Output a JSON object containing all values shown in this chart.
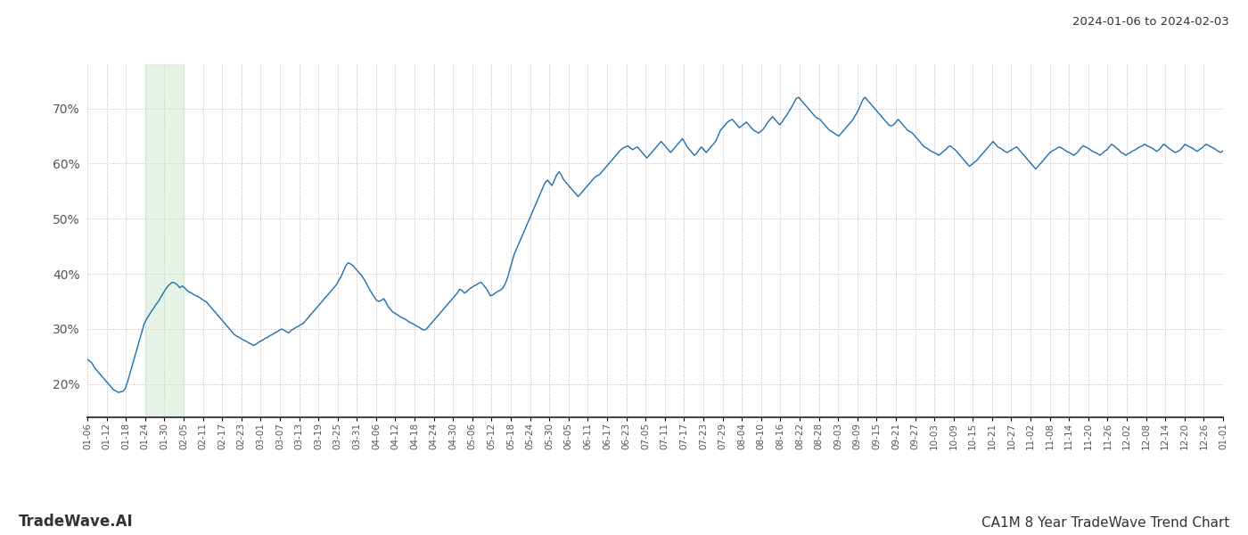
{
  "title_top_right": "2024-01-06 to 2024-02-03",
  "title_bottom_left": "TradeWave.AI",
  "title_bottom_right": "CA1M 8 Year TradeWave Trend Chart",
  "ylim": [
    14,
    78
  ],
  "yticks": [
    20,
    30,
    40,
    50,
    60,
    70
  ],
  "bg_color": "#ffffff",
  "line_color": "#1c6fad",
  "shade_color": "#c8e6c9",
  "shade_alpha": 0.45,
  "grid_color": "#bbbbbb",
  "grid_style": ":",
  "x_labels": [
    "01-06",
    "01-12",
    "01-18",
    "01-24",
    "01-30",
    "02-05",
    "02-11",
    "02-17",
    "02-23",
    "03-01",
    "03-07",
    "03-13",
    "03-19",
    "03-25",
    "03-31",
    "04-06",
    "04-12",
    "04-18",
    "04-24",
    "04-30",
    "05-06",
    "05-12",
    "05-18",
    "05-24",
    "05-30",
    "06-05",
    "06-11",
    "06-17",
    "06-23",
    "07-05",
    "07-11",
    "07-17",
    "07-23",
    "07-29",
    "08-04",
    "08-10",
    "08-16",
    "08-22",
    "08-28",
    "09-03",
    "09-09",
    "09-15",
    "09-21",
    "09-27",
    "10-03",
    "10-09",
    "10-15",
    "10-21",
    "10-27",
    "11-02",
    "11-08",
    "11-14",
    "11-20",
    "11-26",
    "12-02",
    "12-08",
    "12-14",
    "12-20",
    "12-26",
    "01-01"
  ],
  "shade_label_start": "01-24",
  "shade_label_end": "02-05",
  "y_values": [
    24.5,
    24.2,
    23.8,
    23.0,
    22.5,
    22.0,
    21.5,
    21.0,
    20.5,
    20.0,
    19.5,
    19.0,
    18.8,
    18.5,
    18.6,
    18.7,
    19.2,
    20.5,
    22.0,
    23.5,
    25.0,
    26.5,
    28.0,
    29.5,
    31.0,
    31.8,
    32.5,
    33.2,
    33.8,
    34.5,
    35.0,
    35.8,
    36.5,
    37.2,
    37.8,
    38.2,
    38.5,
    38.3,
    38.0,
    37.5,
    37.8,
    37.5,
    37.0,
    36.7,
    36.5,
    36.2,
    36.0,
    35.8,
    35.5,
    35.2,
    35.0,
    34.5,
    34.0,
    33.5,
    33.0,
    32.5,
    32.0,
    31.5,
    31.0,
    30.5,
    30.0,
    29.5,
    29.0,
    28.7,
    28.5,
    28.2,
    28.0,
    27.8,
    27.5,
    27.3,
    27.0,
    27.2,
    27.5,
    27.8,
    28.0,
    28.3,
    28.5,
    28.8,
    29.0,
    29.3,
    29.5,
    29.8,
    30.0,
    29.8,
    29.5,
    29.3,
    29.8,
    30.0,
    30.3,
    30.5,
    30.8,
    31.0,
    31.5,
    32.0,
    32.5,
    33.0,
    33.5,
    34.0,
    34.5,
    35.0,
    35.5,
    36.0,
    36.5,
    37.0,
    37.5,
    38.0,
    38.8,
    39.5,
    40.5,
    41.5,
    42.0,
    41.8,
    41.5,
    41.0,
    40.5,
    40.0,
    39.5,
    38.8,
    38.0,
    37.2,
    36.5,
    35.8,
    35.2,
    35.0,
    35.2,
    35.5,
    34.8,
    34.0,
    33.5,
    33.0,
    32.8,
    32.5,
    32.2,
    32.0,
    31.8,
    31.5,
    31.2,
    31.0,
    30.8,
    30.5,
    30.3,
    30.0,
    29.8,
    30.0,
    30.5,
    31.0,
    31.5,
    32.0,
    32.5,
    33.0,
    33.5,
    34.0,
    34.5,
    35.0,
    35.5,
    36.0,
    36.5,
    37.2,
    37.0,
    36.5,
    36.8,
    37.2,
    37.5,
    37.8,
    38.0,
    38.3,
    38.5,
    38.0,
    37.5,
    36.8,
    36.0,
    36.2,
    36.5,
    36.8,
    37.0,
    37.3,
    38.0,
    39.0,
    40.5,
    42.0,
    43.5,
    44.5,
    45.5,
    46.5,
    47.5,
    48.5,
    49.5,
    50.5,
    51.5,
    52.5,
    53.5,
    54.5,
    55.5,
    56.5,
    57.0,
    56.5,
    56.0,
    57.0,
    58.0,
    58.5,
    57.8,
    57.0,
    56.5,
    56.0,
    55.5,
    55.0,
    54.5,
    54.0,
    54.5,
    55.0,
    55.5,
    56.0,
    56.5,
    57.0,
    57.5,
    57.8,
    58.0,
    58.5,
    59.0,
    59.5,
    60.0,
    60.5,
    61.0,
    61.5,
    62.0,
    62.5,
    62.8,
    63.0,
    63.2,
    62.8,
    62.5,
    62.8,
    63.0,
    62.5,
    62.0,
    61.5,
    61.0,
    61.5,
    62.0,
    62.5,
    63.0,
    63.5,
    64.0,
    63.5,
    63.0,
    62.5,
    62.0,
    62.5,
    63.0,
    63.5,
    64.0,
    64.5,
    63.8,
    63.0,
    62.5,
    62.0,
    61.5,
    61.8,
    62.5,
    63.0,
    62.5,
    62.0,
    62.5,
    63.0,
    63.5,
    64.0,
    65.0,
    66.0,
    66.5,
    67.0,
    67.5,
    67.8,
    68.0,
    67.5,
    67.0,
    66.5,
    66.8,
    67.2,
    67.5,
    67.0,
    66.5,
    66.0,
    65.8,
    65.5,
    65.8,
    66.2,
    66.8,
    67.5,
    68.0,
    68.5,
    68.0,
    67.5,
    67.0,
    67.5,
    68.2,
    68.8,
    69.5,
    70.2,
    71.0,
    71.8,
    72.0,
    71.5,
    71.0,
    70.5,
    70.0,
    69.5,
    69.0,
    68.5,
    68.2,
    68.0,
    67.5,
    67.0,
    66.5,
    66.0,
    65.8,
    65.5,
    65.2,
    65.0,
    65.5,
    66.0,
    66.5,
    67.0,
    67.5,
    68.0,
    68.8,
    69.5,
    70.5,
    71.5,
    72.0,
    71.5,
    71.0,
    70.5,
    70.0,
    69.5,
    69.0,
    68.5,
    68.0,
    67.5,
    67.0,
    66.8,
    67.0,
    67.5,
    68.0,
    67.5,
    67.0,
    66.5,
    66.0,
    65.8,
    65.5,
    65.0,
    64.5,
    64.0,
    63.5,
    63.0,
    62.8,
    62.5,
    62.2,
    62.0,
    61.8,
    61.5,
    61.8,
    62.2,
    62.5,
    63.0,
    63.2,
    62.8,
    62.5,
    62.0,
    61.5,
    61.0,
    60.5,
    60.0,
    59.5,
    59.8,
    60.2,
    60.5,
    61.0,
    61.5,
    62.0,
    62.5,
    63.0,
    63.5,
    64.0,
    63.5,
    63.0,
    62.8,
    62.5,
    62.2,
    62.0,
    62.3,
    62.5,
    62.8,
    63.0,
    62.5,
    62.0,
    61.5,
    61.0,
    60.5,
    60.0,
    59.5,
    59.0,
    59.5,
    60.0,
    60.5,
    61.0,
    61.5,
    62.0,
    62.3,
    62.5,
    62.8,
    63.0,
    62.8,
    62.5,
    62.2,
    62.0,
    61.8,
    61.5,
    61.8,
    62.2,
    62.8,
    63.2,
    63.0,
    62.8,
    62.5,
    62.2,
    62.0,
    61.8,
    61.5,
    61.8,
    62.2,
    62.5,
    63.0,
    63.5,
    63.2,
    62.8,
    62.5,
    62.0,
    61.8,
    61.5,
    61.8,
    62.0,
    62.3,
    62.5,
    62.8,
    63.0,
    63.2,
    63.5,
    63.2,
    63.0,
    62.8,
    62.5,
    62.2,
    62.5,
    63.0,
    63.5,
    63.2,
    62.8,
    62.5,
    62.2,
    62.0,
    62.2,
    62.5,
    63.0,
    63.5,
    63.2,
    63.0,
    62.8,
    62.5,
    62.2,
    62.5,
    62.8,
    63.2,
    63.5,
    63.2,
    63.0,
    62.8,
    62.5,
    62.2,
    62.0,
    62.3
  ]
}
